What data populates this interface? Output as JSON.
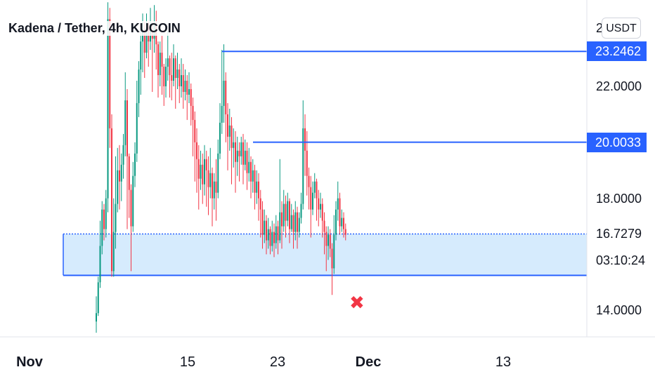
{
  "header": {
    "title": "Kadena / Tether, 4h, KUCOIN"
  },
  "currency_button": {
    "label": "USDT"
  },
  "countdown": "03:10:24",
  "colors": {
    "up": "#089981",
    "down": "#f23645",
    "level_line": "#2962ff",
    "zone_fill": "#d6ebfd",
    "marker": "#f23645"
  },
  "marker": {
    "icon": "x-mark-icon",
    "symbol": "✖"
  },
  "chart_data": {
    "type": "candlestick",
    "title": "Kadena / Tether, 4h, KUCOIN",
    "y_axis": {
      "ticks": [
        {
          "value": 22.0,
          "label": "22.0000"
        },
        {
          "value": 18.0,
          "label": "18.0000"
        },
        {
          "value": 14.0,
          "label": "14.0000"
        }
      ],
      "partial_top_label": "2"
    },
    "x_axis": {
      "labels": [
        {
          "label": "Nov",
          "bold": true
        },
        {
          "label": "15",
          "bold": false
        },
        {
          "label": "23",
          "bold": false
        },
        {
          "label": "Dec",
          "bold": true
        },
        {
          "label": "13",
          "bold": false
        }
      ]
    },
    "levels": [
      {
        "value": 23.2462,
        "label": "23.2462",
        "highlight": true
      },
      {
        "value": 20.0033,
        "label": "20.0033",
        "highlight": true
      }
    ],
    "current_price": {
      "value": 16.7279,
      "label": "16.7279"
    },
    "support_zone": {
      "top": 16.7279,
      "bottom": 15.25
    },
    "invalidation_marker_price": 14.55,
    "candles": [
      [
        13.6,
        13.9,
        13.2,
        14.5
      ],
      [
        13.9,
        15.0,
        13.8,
        15.2
      ],
      [
        15.0,
        16.3,
        14.8,
        17.2
      ],
      [
        16.3,
        17.6,
        16.0,
        17.9
      ],
      [
        17.6,
        16.9,
        16.5,
        17.8
      ],
      [
        16.9,
        18.0,
        16.6,
        18.3
      ],
      [
        18.0,
        24.4,
        17.5,
        25.0
      ],
      [
        24.4,
        20.5,
        19.8,
        24.8
      ],
      [
        20.5,
        15.4,
        15.2,
        21.0
      ],
      [
        15.4,
        16.8,
        15.2,
        18.0
      ],
      [
        16.8,
        17.8,
        16.2,
        19.5
      ],
      [
        17.8,
        19.0,
        17.5,
        19.8
      ],
      [
        19.0,
        18.6,
        17.6,
        19.9
      ],
      [
        18.6,
        19.2,
        17.9,
        19.6
      ],
      [
        19.2,
        19.9,
        18.7,
        20.3
      ],
      [
        19.9,
        21.5,
        19.5,
        22.5
      ],
      [
        21.5,
        19.5,
        16.9,
        21.9
      ],
      [
        19.5,
        18.3,
        17.3,
        19.6
      ],
      [
        18.3,
        17.0,
        15.4,
        18.5
      ],
      [
        17.0,
        18.8,
        16.8,
        19.3
      ],
      [
        18.8,
        19.6,
        18.4,
        20.0
      ],
      [
        19.6,
        21.4,
        19.3,
        22.2
      ],
      [
        21.4,
        22.6,
        20.9,
        22.9
      ],
      [
        22.6,
        23.6,
        21.7,
        24.0
      ],
      [
        23.6,
        24.0,
        22.5,
        24.6
      ],
      [
        24.0,
        23.2,
        22.3,
        24.3
      ],
      [
        23.2,
        24.1,
        23.0,
        24.6
      ],
      [
        24.1,
        23.6,
        22.7,
        24.3
      ],
      [
        23.6,
        24.0,
        23.3,
        24.8
      ],
      [
        24.0,
        23.7,
        21.8,
        24.2
      ],
      [
        23.7,
        24.2,
        23.2,
        24.9
      ],
      [
        24.2,
        23.5,
        22.6,
        24.7
      ],
      [
        23.5,
        22.4,
        21.6,
        23.6
      ],
      [
        22.4,
        23.2,
        22.0,
        23.6
      ],
      [
        23.2,
        22.7,
        21.7,
        23.8
      ],
      [
        22.7,
        22.0,
        21.3,
        22.8
      ],
      [
        22.0,
        22.7,
        21.6,
        23.0
      ],
      [
        22.7,
        23.0,
        22.2,
        24.0
      ],
      [
        23.0,
        22.4,
        21.6,
        23.1
      ],
      [
        22.4,
        22.2,
        21.5,
        23.2
      ],
      [
        22.2,
        23.0,
        22.0,
        23.5
      ],
      [
        23.0,
        22.3,
        21.2,
        23.1
      ],
      [
        22.3,
        22.6,
        21.9,
        23.2
      ],
      [
        22.6,
        22.0,
        21.4,
        22.8
      ],
      [
        22.0,
        22.4,
        21.6,
        23.0
      ],
      [
        22.4,
        21.8,
        21.2,
        22.8
      ],
      [
        21.8,
        22.2,
        21.5,
        22.6
      ],
      [
        22.2,
        21.7,
        20.8,
        22.4
      ],
      [
        21.7,
        21.9,
        21.4,
        22.5
      ],
      [
        21.9,
        21.3,
        20.6,
        22.1
      ],
      [
        21.3,
        20.8,
        19.5,
        21.6
      ],
      [
        20.8,
        20.0,
        18.6,
        21.1
      ],
      [
        20.0,
        19.4,
        18.2,
        20.5
      ],
      [
        19.4,
        18.7,
        17.6,
        19.9
      ],
      [
        18.7,
        19.2,
        18.3,
        19.7
      ],
      [
        19.2,
        18.5,
        17.8,
        19.6
      ],
      [
        18.5,
        19.4,
        18.1,
        19.9
      ],
      [
        19.4,
        19.0,
        17.7,
        19.7
      ],
      [
        19.0,
        18.4,
        17.4,
        19.5
      ],
      [
        18.4,
        18.9,
        18.0,
        19.8
      ],
      [
        18.9,
        18.0,
        17.0,
        19.1
      ],
      [
        18.0,
        18.6,
        17.6,
        18.9
      ],
      [
        18.6,
        18.2,
        17.2,
        19.4
      ],
      [
        18.2,
        19.6,
        18.0,
        20.1
      ],
      [
        19.6,
        20.7,
        19.4,
        21.4
      ],
      [
        20.7,
        21.3,
        20.3,
        23.3
      ],
      [
        21.3,
        22.2,
        20.7,
        23.5
      ],
      [
        22.2,
        21.0,
        20.0,
        22.5
      ],
      [
        21.0,
        20.2,
        19.0,
        21.4
      ],
      [
        20.2,
        20.6,
        19.7,
        21.2
      ],
      [
        20.6,
        19.8,
        18.5,
        20.9
      ],
      [
        19.8,
        20.0,
        19.1,
        20.5
      ],
      [
        20.0,
        19.3,
        18.2,
        20.4
      ],
      [
        19.3,
        19.7,
        18.8,
        20.2
      ],
      [
        19.7,
        19.5,
        18.6,
        20.0
      ],
      [
        19.5,
        20.0,
        19.2,
        20.2
      ],
      [
        20.0,
        19.2,
        18.5,
        20.3
      ],
      [
        19.2,
        19.7,
        19.0,
        20.1
      ],
      [
        19.7,
        18.9,
        18.3,
        20.0
      ],
      [
        18.9,
        19.3,
        18.6,
        19.8
      ],
      [
        19.3,
        18.6,
        18.0,
        19.5
      ],
      [
        18.6,
        19.0,
        18.2,
        19.4
      ],
      [
        19.0,
        18.2,
        17.6,
        19.2
      ],
      [
        18.2,
        18.6,
        17.8,
        19.0
      ],
      [
        18.6,
        18.0,
        17.2,
        18.9
      ],
      [
        18.0,
        17.6,
        16.6,
        18.3
      ],
      [
        17.6,
        16.7,
        16.2,
        17.9
      ],
      [
        16.7,
        17.2,
        16.4,
        17.6
      ],
      [
        17.2,
        16.5,
        16.0,
        17.4
      ],
      [
        16.5,
        16.9,
        16.2,
        17.3
      ],
      [
        16.9,
        16.3,
        16.0,
        17.0
      ],
      [
        16.3,
        16.8,
        16.1,
        17.2
      ],
      [
        16.8,
        16.4,
        15.9,
        17.1
      ],
      [
        16.4,
        17.0,
        16.2,
        17.4
      ],
      [
        17.0,
        16.5,
        16.0,
        17.2
      ],
      [
        16.5,
        17.5,
        16.4,
        19.4
      ],
      [
        17.5,
        17.0,
        16.2,
        17.9
      ],
      [
        17.0,
        17.8,
        16.8,
        18.3
      ],
      [
        17.8,
        17.2,
        16.6,
        18.1
      ],
      [
        17.2,
        17.9,
        17.0,
        18.2
      ],
      [
        17.9,
        16.9,
        16.4,
        18.0
      ],
      [
        16.9,
        17.4,
        16.8,
        17.8
      ],
      [
        17.4,
        16.8,
        16.2,
        17.6
      ],
      [
        16.8,
        17.5,
        16.5,
        17.9
      ],
      [
        17.5,
        16.8,
        16.2,
        17.7
      ],
      [
        16.8,
        17.3,
        16.6,
        17.5
      ],
      [
        17.3,
        17.8,
        17.1,
        18.2
      ],
      [
        17.8,
        20.5,
        17.6,
        21.5
      ],
      [
        20.5,
        19.7,
        18.8,
        21.0
      ],
      [
        19.7,
        18.8,
        18.1,
        20.4
      ],
      [
        18.8,
        18.4,
        17.6,
        19.1
      ],
      [
        18.4,
        17.6,
        16.6,
        18.8
      ],
      [
        17.6,
        18.2,
        17.4,
        18.6
      ],
      [
        18.2,
        18.6,
        18.0,
        18.9
      ],
      [
        18.6,
        18.0,
        17.2,
        18.7
      ],
      [
        18.0,
        17.6,
        17.0,
        18.3
      ],
      [
        17.6,
        17.8,
        17.3,
        18.2
      ],
      [
        17.8,
        17.2,
        16.6,
        18.0
      ],
      [
        17.2,
        16.8,
        16.0,
        17.5
      ],
      [
        16.8,
        16.3,
        15.4,
        17.0
      ],
      [
        16.3,
        16.7,
        15.8,
        17.0
      ],
      [
        16.7,
        16.2,
        15.9,
        16.9
      ],
      [
        16.2,
        15.5,
        14.55,
        16.4
      ],
      [
        15.5,
        16.7,
        15.3,
        17.4
      ],
      [
        16.7,
        17.6,
        16.5,
        17.9
      ],
      [
        17.6,
        18.0,
        17.2,
        18.6
      ],
      [
        18.0,
        17.0,
        16.7,
        18.2
      ],
      [
        17.0,
        17.3,
        16.8,
        17.6
      ],
      [
        17.3,
        16.9,
        16.6,
        17.5
      ],
      [
        16.9,
        16.7,
        16.5,
        17.1
      ]
    ]
  }
}
